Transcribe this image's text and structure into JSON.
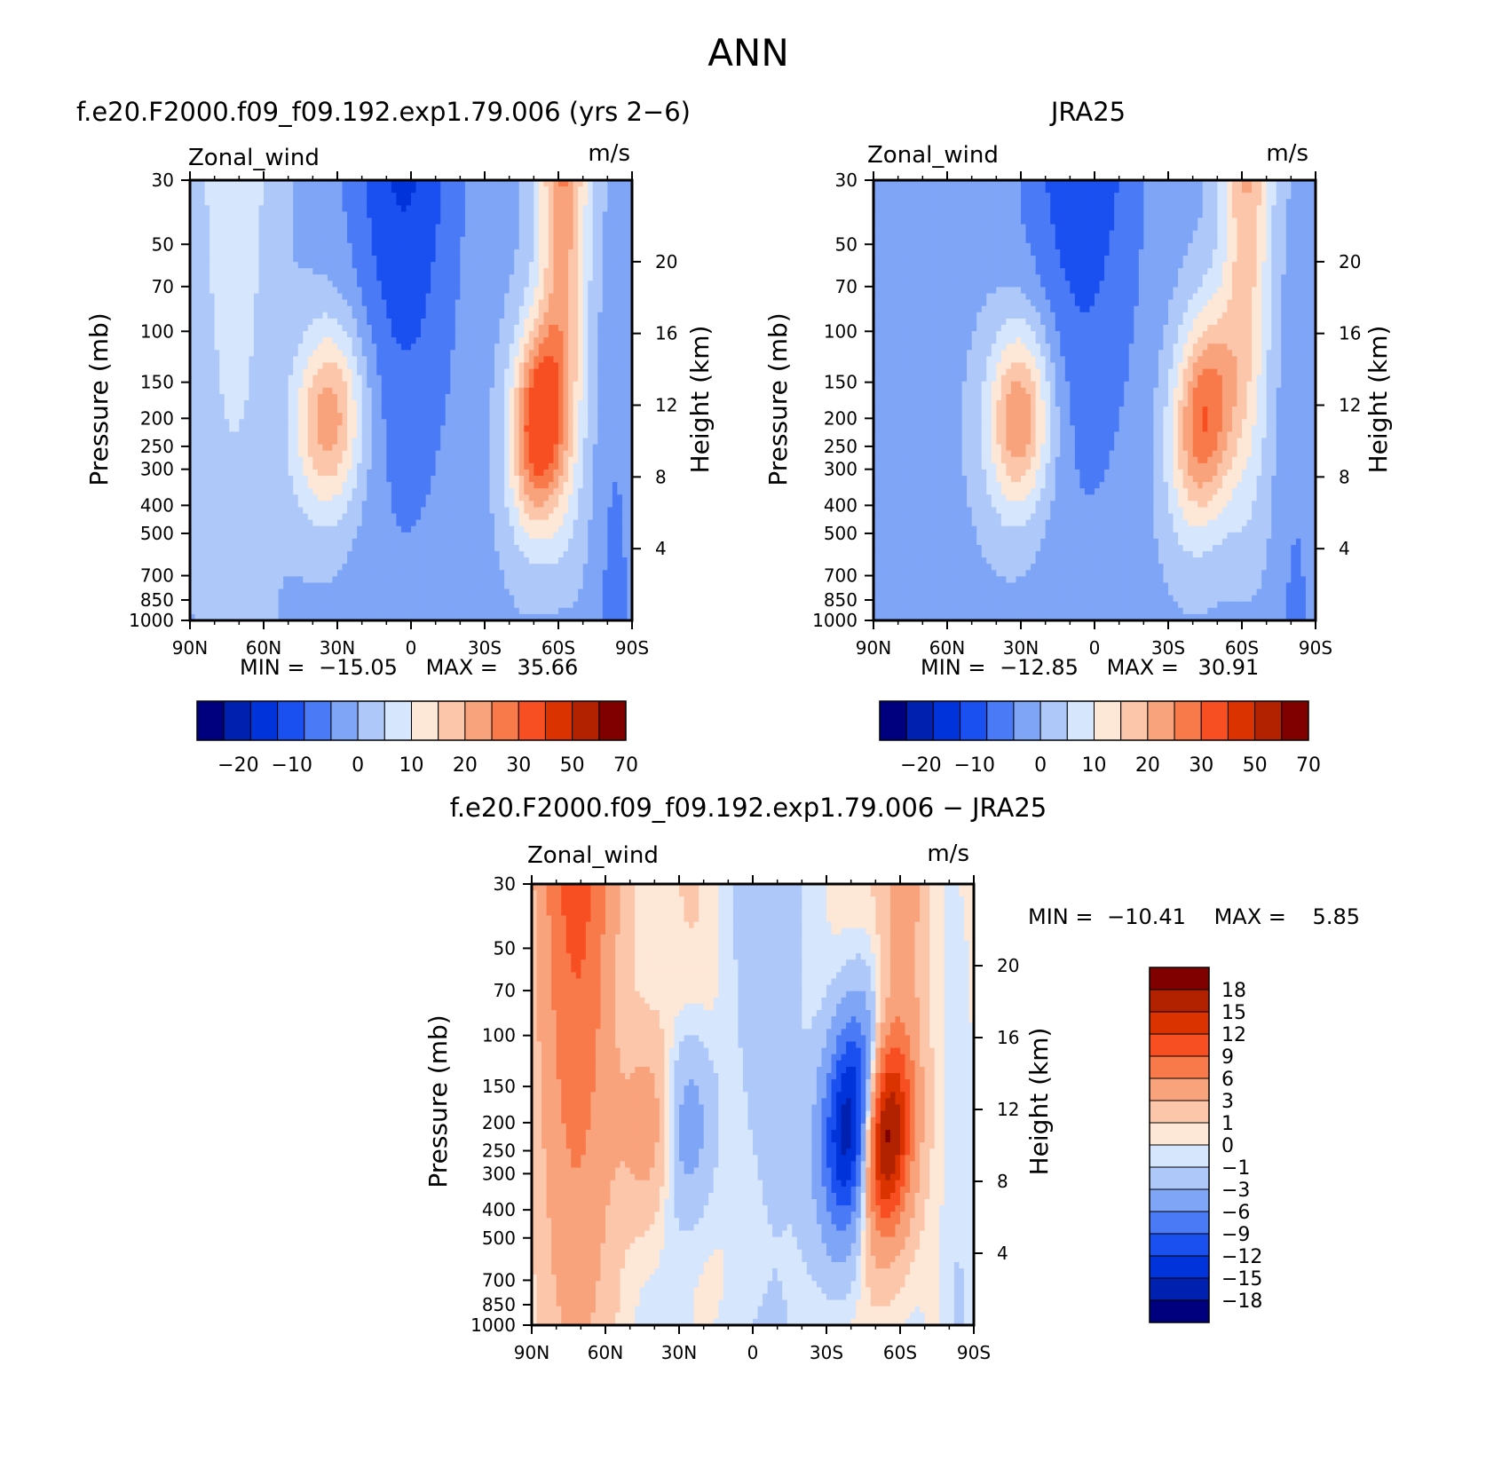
{
  "figure": {
    "main_title": "ANN",
    "colors": {
      "abs_levels": [
        "#00007f",
        "#0020b0",
        "#0033d9",
        "#1a4ff0",
        "#4a7af5",
        "#7fa5f7",
        "#afc8fa",
        "#d6e6fc",
        "#fde7d6",
        "#fcc6ab",
        "#f9a37d",
        "#f87a4a",
        "#f74f22",
        "#db3300",
        "#b32200",
        "#800000"
      ],
      "diff_levels": [
        "#00007f",
        "#0020b0",
        "#0033d9",
        "#1a4ff0",
        "#4a7af5",
        "#7fa5f7",
        "#afc8fa",
        "#d6e6fc",
        "#fde7d6",
        "#fcc6ab",
        "#f9a37d",
        "#f87a4a",
        "#f74f22",
        "#db3300",
        "#b32200",
        "#800000"
      ]
    }
  },
  "chart_data": [
    {
      "type": "contour",
      "title": "f.e20.F2000.f09_f09.192.exp1.79.006 (yrs 2−6)",
      "variable": "Zonal_wind",
      "units": "m/s",
      "ylabel": "Pressure (mb)",
      "y2label": "Height (km)",
      "x_ticks": [
        "90N",
        "60N",
        "30N",
        "0",
        "30S",
        "60S",
        "90S"
      ],
      "y_ticks": [
        "30",
        "50",
        "70",
        "100",
        "150",
        "200",
        "250",
        "300",
        "400",
        "500",
        "700",
        "850",
        "1000"
      ],
      "y2_ticks": [
        "20",
        "16",
        "12",
        "8",
        "4"
      ],
      "ylim": [
        1000,
        30
      ],
      "xlim": [
        "90N",
        "90S"
      ],
      "stats": {
        "min_label": "MIN =",
        "min": "−15.05",
        "max_label": "MAX =",
        "max": "35.66"
      },
      "colorbar_labels": [
        "−20",
        "−10",
        "0",
        "10",
        "20",
        "30",
        "50",
        "70"
      ],
      "fields": {
        "jet_nh": {
          "lat": 35,
          "p": 200,
          "peak": 25
        },
        "jet_sh": {
          "lat": -49,
          "p": 200,
          "peak": 35.66
        },
        "tropical_easterly": {
          "lat": 5,
          "p": 30,
          "min": -15.05
        }
      }
    },
    {
      "type": "contour",
      "title": "JRA25",
      "variable": "Zonal_wind",
      "units": "m/s",
      "ylabel": "Pressure (mb)",
      "y2label": "Height (km)",
      "x_ticks": [
        "90N",
        "60N",
        "30N",
        "0",
        "30S",
        "60S",
        "90S"
      ],
      "y_ticks": [
        "30",
        "50",
        "70",
        "100",
        "150",
        "200",
        "250",
        "300",
        "400",
        "500",
        "700",
        "850",
        "1000"
      ],
      "y2_ticks": [
        "20",
        "16",
        "12",
        "8",
        "4"
      ],
      "ylim": [
        1000,
        30
      ],
      "xlim": [
        "90N",
        "90S"
      ],
      "stats": {
        "min_label": "MIN =",
        "min": "−12.85",
        "max_label": "MAX =",
        "max": "30.91"
      },
      "colorbar_labels": [
        "−20",
        "−10",
        "0",
        "10",
        "20",
        "30",
        "50",
        "70"
      ],
      "fields": {
        "jet_nh": {
          "lat": 32,
          "p": 200,
          "peak": 27
        },
        "jet_sh": {
          "lat": -40,
          "p": 200,
          "peak": 30.91
        },
        "tropical_easterly": {
          "lat": 5,
          "p": 30,
          "min": -12.85
        }
      }
    },
    {
      "type": "contour",
      "title": "f.e20.F2000.f09_f09.192.exp1.79.006 − JRA25",
      "variable": "Zonal_wind",
      "units": "m/s",
      "ylabel": "Pressure (mb)",
      "y2label": "Height (km)",
      "x_ticks": [
        "90N",
        "60N",
        "30N",
        "0",
        "30S",
        "60S",
        "90S"
      ],
      "y_ticks": [
        "30",
        "50",
        "70",
        "100",
        "150",
        "200",
        "250",
        "300",
        "400",
        "500",
        "700",
        "850",
        "1000"
      ],
      "y2_ticks": [
        "20",
        "16",
        "12",
        "8",
        "4"
      ],
      "ylim": [
        1000,
        30
      ],
      "xlim": [
        "90N",
        "90S"
      ],
      "stats": {
        "min_label": "MIN =",
        "min": "−10.41",
        "max_label": "MAX =",
        "max": "5.85"
      },
      "colorbar_labels": [
        "18",
        "15",
        "12",
        "9",
        "6",
        "3",
        "1",
        "0",
        "−1",
        "−3",
        "−6",
        "−9",
        "−12",
        "−15",
        "−18"
      ]
    }
  ]
}
